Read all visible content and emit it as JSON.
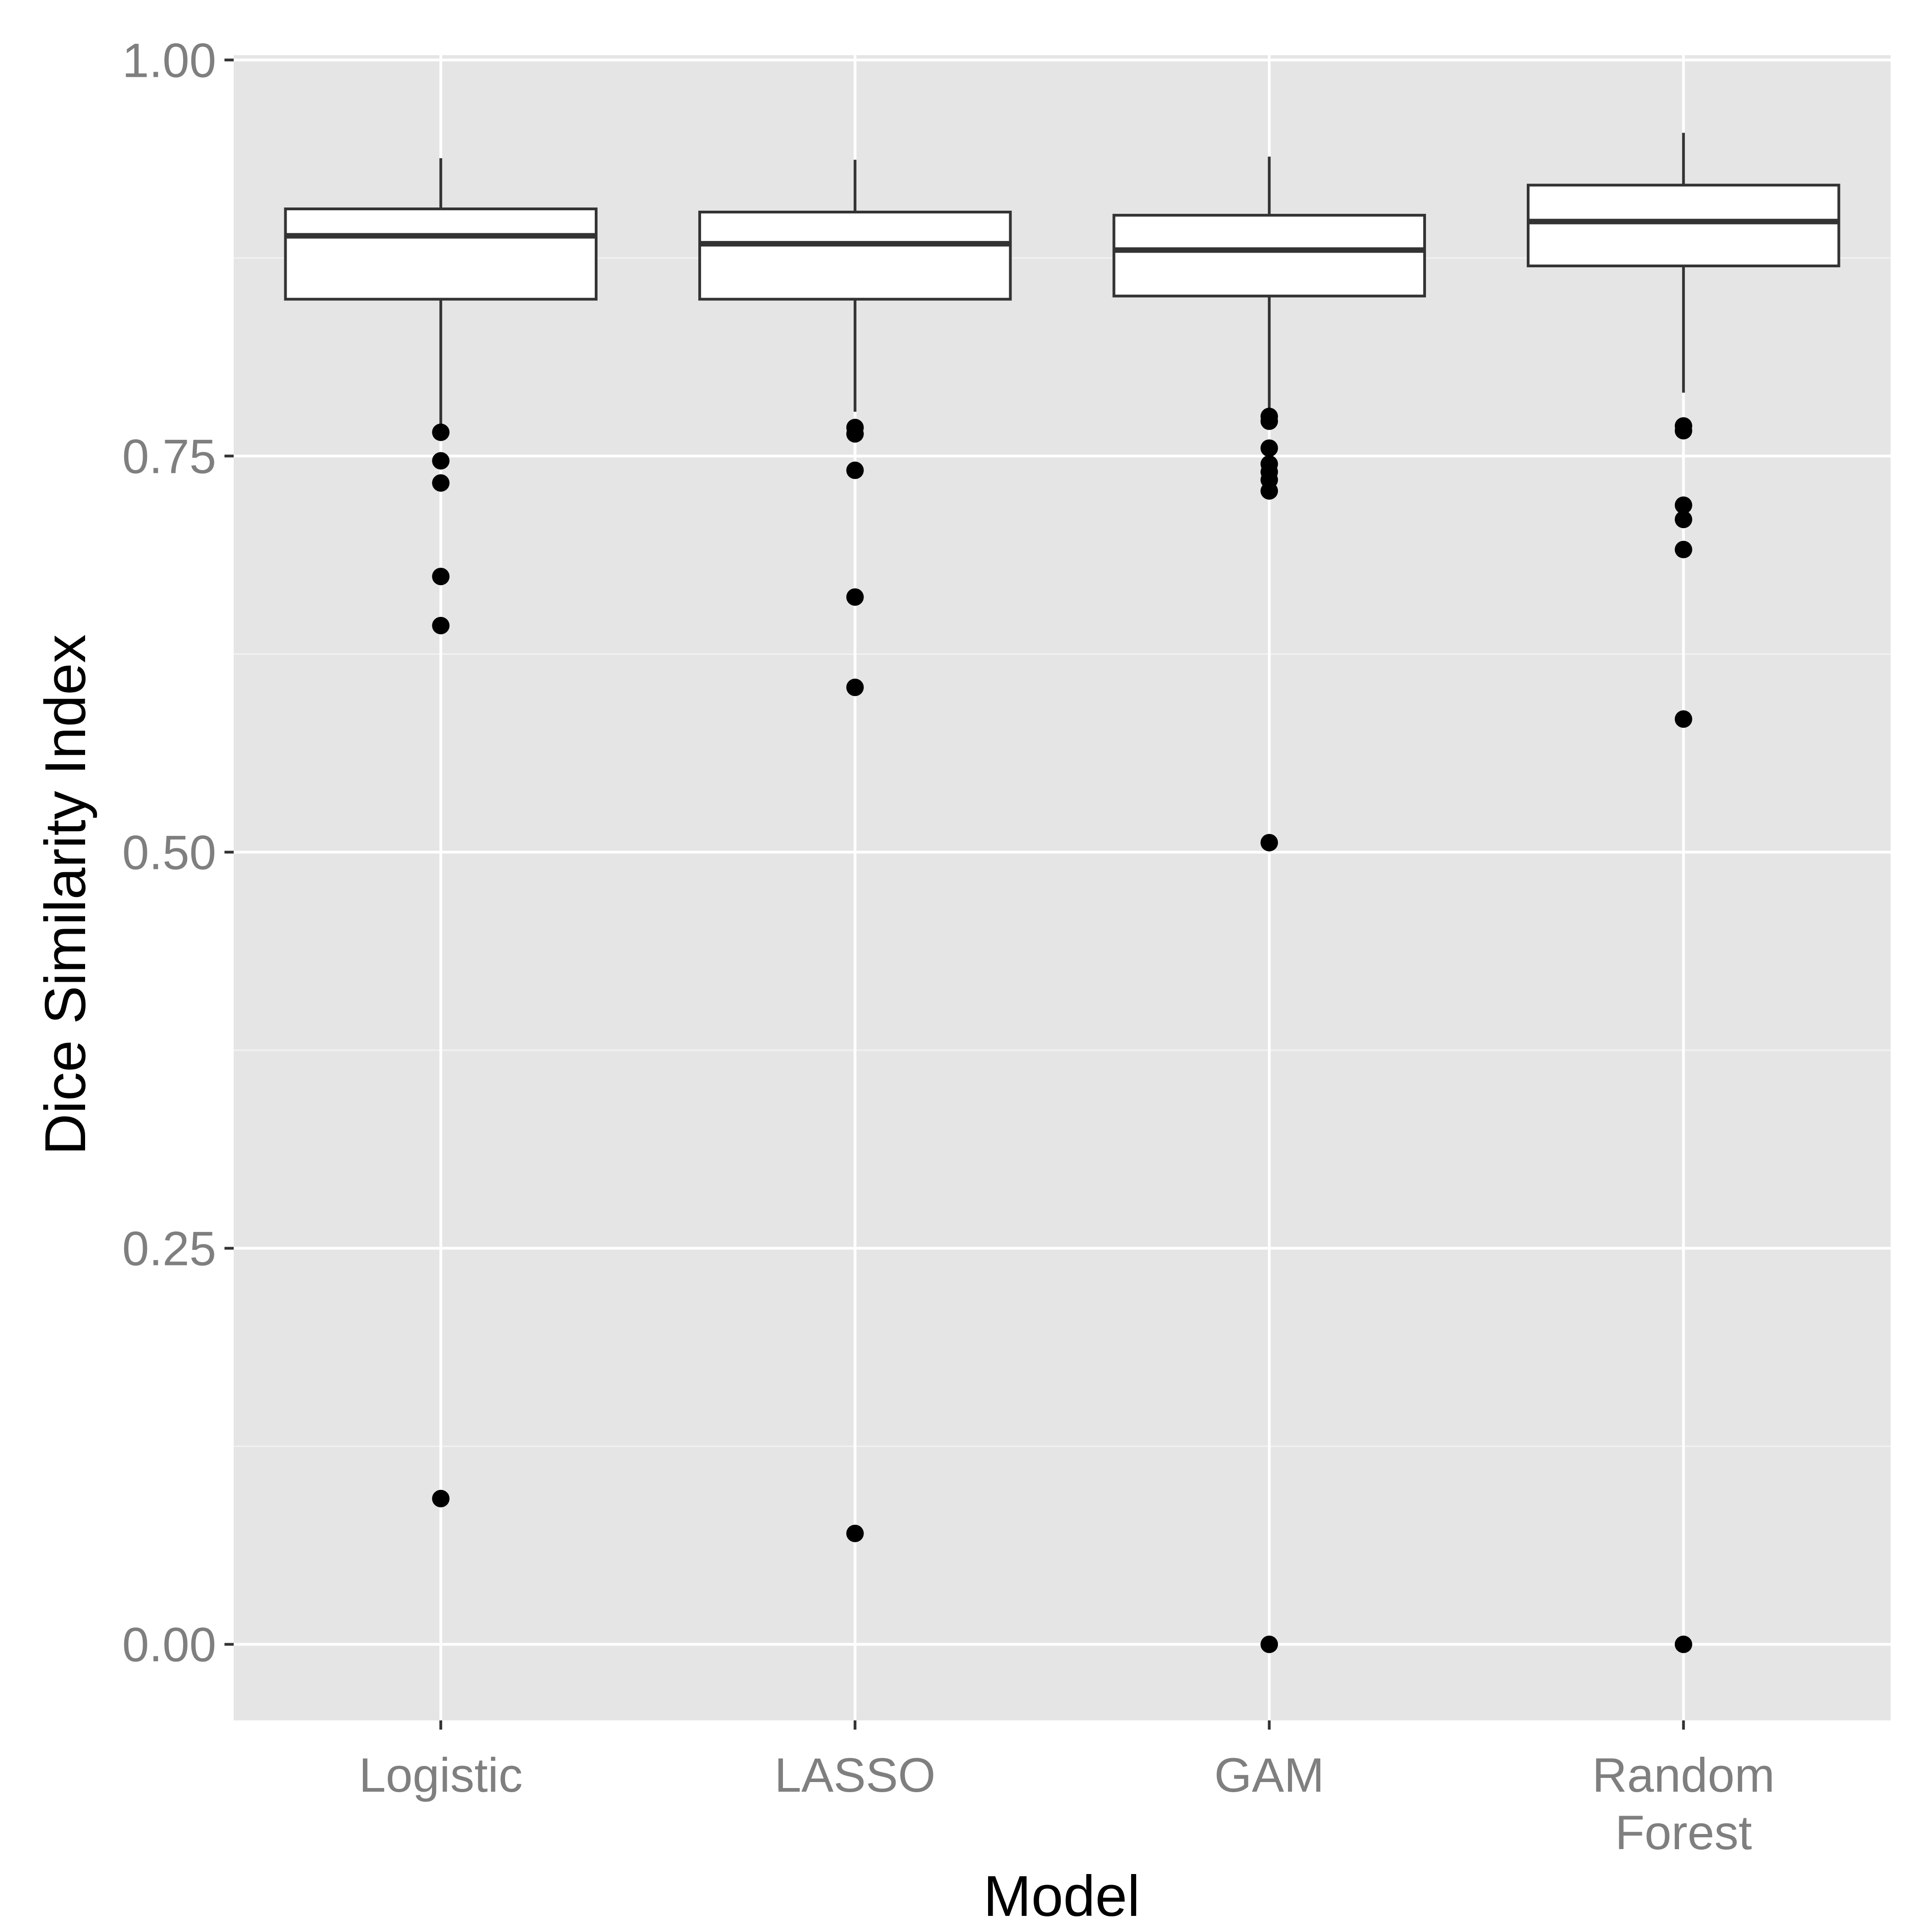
{
  "chart_data": {
    "type": "boxplot",
    "xlabel": "Model",
    "ylabel": "Dice Similarity Index",
    "ylim": [
      -0.048,
      1.003
    ],
    "yticks": [
      0.0,
      0.25,
      0.5,
      0.75,
      1.0
    ],
    "ytick_labels": [
      "0.00",
      "0.25",
      "0.50",
      "0.75",
      "1.00"
    ],
    "grid": true,
    "legend": "none",
    "categories": [
      {
        "label_lines": [
          "Logistic"
        ]
      },
      {
        "label_lines": [
          "LASSO"
        ]
      },
      {
        "label_lines": [
          "GAM"
        ]
      },
      {
        "label_lines": [
          "Random",
          "Forest"
        ]
      }
    ],
    "boxes": [
      {
        "whisker_low": 0.765,
        "q1": 0.849,
        "median": 0.889,
        "q3": 0.906,
        "whisker_high": 0.938,
        "outliers": [
          0.765,
          0.747,
          0.733,
          0.674,
          0.643,
          0.092
        ]
      },
      {
        "whisker_low": 0.778,
        "q1": 0.849,
        "median": 0.884,
        "q3": 0.904,
        "whisker_high": 0.937,
        "outliers": [
          0.768,
          0.764,
          0.741,
          0.661,
          0.604,
          0.07
        ]
      },
      {
        "whisker_low": 0.778,
        "q1": 0.851,
        "median": 0.88,
        "q3": 0.902,
        "whisker_high": 0.939,
        "outliers": [
          0.775,
          0.772,
          0.755,
          0.745,
          0.74,
          0.735,
          0.728,
          0.506,
          0.0
        ]
      },
      {
        "whisker_low": 0.79,
        "q1": 0.87,
        "median": 0.898,
        "q3": 0.921,
        "whisker_high": 0.954,
        "outliers": [
          0.769,
          0.766,
          0.719,
          0.71,
          0.691,
          0.584,
          0.0
        ]
      }
    ],
    "colors": {
      "panel_background": "#e5e5e5",
      "grid_major": "#ffffff",
      "grid_minor": "#f2f2f2",
      "box_fill": "#ffffff",
      "box_stroke": "#333333",
      "point": "#000000",
      "tick_label": "#7f7f7f",
      "axis_title": "#000000"
    }
  }
}
